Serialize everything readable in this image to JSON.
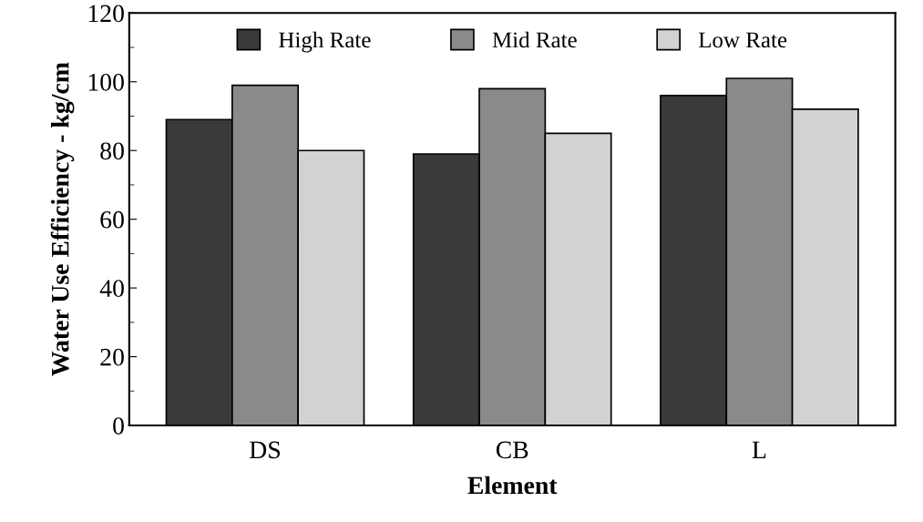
{
  "chart_data": {
    "type": "bar",
    "xlabel": "Element",
    "ylabel": "Water Use Efficiency - kg/cm",
    "categories": [
      "DS",
      "CB",
      "L"
    ],
    "series": [
      {
        "name": "High Rate",
        "color": "#3a3a3a",
        "values": [
          89,
          79,
          96
        ]
      },
      {
        "name": "Mid Rate",
        "color": "#8a8a8a",
        "values": [
          99,
          98,
          101
        ]
      },
      {
        "name": "Low Rate",
        "color": "#d2d2d2",
        "values": [
          80,
          85,
          92
        ]
      }
    ],
    "ylim": [
      0,
      120
    ],
    "yticks": [
      0,
      20,
      40,
      60,
      80,
      100,
      120
    ],
    "grid": false,
    "legend": "top"
  }
}
